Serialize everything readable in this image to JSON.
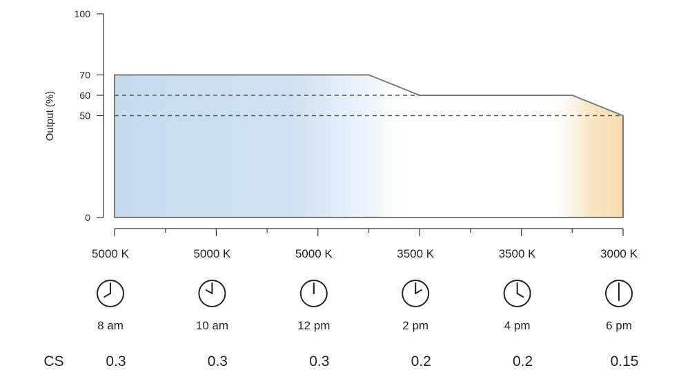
{
  "chart_data": {
    "type": "area",
    "ylabel": "Output (%)",
    "ylim": [
      0,
      100
    ],
    "yticks": [
      0,
      50,
      60,
      70,
      100
    ],
    "x_labels": [
      "5000 K",
      "5000 K",
      "5000 K",
      "3500 K",
      "3500 K",
      "3000 K"
    ],
    "times": [
      {
        "label": "8 am",
        "hour": 8
      },
      {
        "label": "10 am",
        "hour": 10
      },
      {
        "label": "12 pm",
        "hour": 12
      },
      {
        "label": "2 pm",
        "hour": 2
      },
      {
        "label": "4 pm",
        "hour": 4
      },
      {
        "label": "6 pm",
        "hour": 6
      }
    ],
    "cs_label": "CS",
    "cs_values": [
      "0.3",
      "0.3",
      "0.3",
      "0.2",
      "0.2",
      "0.15"
    ],
    "series": [
      {
        "x": [
          0,
          2.5,
          3,
          4.5,
          5
        ],
        "y": [
          70,
          70,
          60,
          60,
          50
        ]
      }
    ],
    "reference_lines": [
      60,
      50
    ],
    "colors": {
      "cool": "#c7dcef",
      "warm": "#f6ddb0",
      "line": "#7b7b7b",
      "dashed": "#555555",
      "axis": "#333333"
    }
  }
}
